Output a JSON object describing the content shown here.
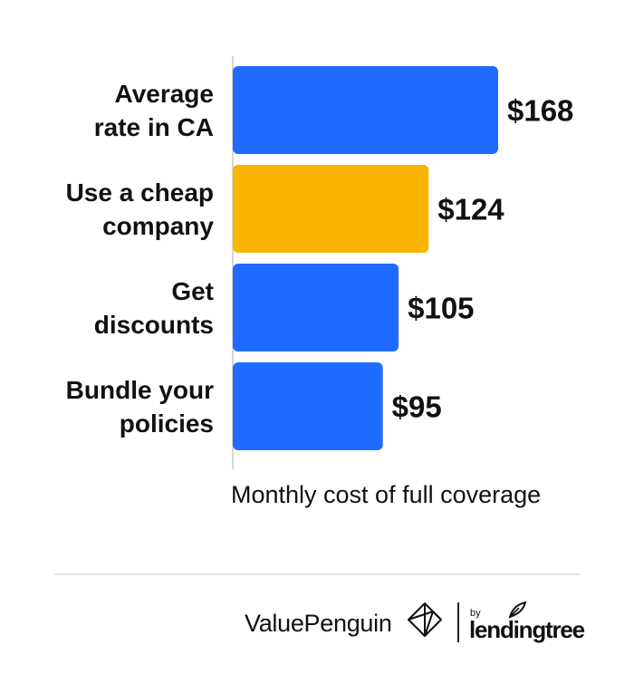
{
  "chart_data": {
    "type": "bar",
    "orientation": "horizontal",
    "categories": [
      [
        "Average",
        "rate in CA"
      ],
      [
        "Use a cheap",
        "company"
      ],
      [
        "Get",
        "discounts"
      ],
      [
        "Bundle your",
        "policies"
      ]
    ],
    "values": [
      168,
      124,
      105,
      95
    ],
    "value_labels": [
      "$168",
      "$124",
      "$105",
      "$95"
    ],
    "colors": [
      "#1f6bff",
      "#f8b400",
      "#1f6bff",
      "#1f6bff"
    ],
    "xlabel": "Monthly cost of full coverage",
    "xlim": [
      0,
      168
    ],
    "grid": false
  },
  "footer": {
    "brand": "ValuePenguin",
    "by": "by",
    "partner": "lendingtree"
  }
}
